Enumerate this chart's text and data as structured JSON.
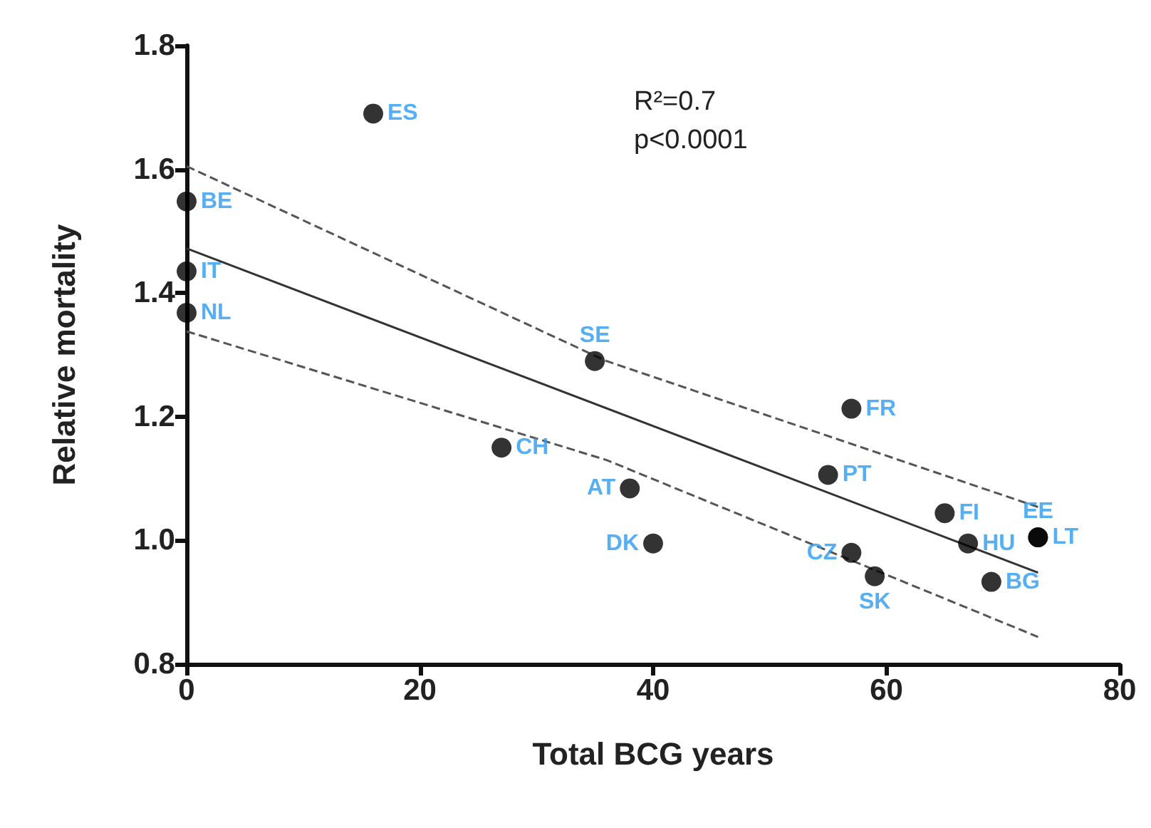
{
  "chart_data": {
    "type": "scatter",
    "xlabel": "Total BCG years",
    "ylabel": "Relative mortality",
    "annotations": [
      "R²=0.7",
      "p<0.0001"
    ],
    "xlim": [
      0,
      80
    ],
    "xticks": [
      0,
      20,
      40,
      60,
      80
    ],
    "ylim": [
      0.8,
      1.8
    ],
    "yticks": [
      0.8,
      {
        "value": 1,
        "label": "1.0"
      },
      1.2,
      1.4,
      1.6,
      1.8
    ],
    "marker": "circle",
    "series": [
      {
        "color": "#000000",
        "x": [
          16,
          0,
          0,
          0,
          35,
          27,
          38,
          40,
          57,
          55,
          57,
          59,
          65,
          67,
          73,
          73,
          69
        ],
        "values": [
          1.69,
          1.548,
          1.435,
          1.368,
          1.29,
          1.15,
          1.084,
          0.995,
          1.213,
          1.106,
          0.98,
          0.942,
          1.044,
          0.995,
          1.005,
          1.005,
          0.933
        ],
        "value_labels": [
          "ES",
          "BE",
          "IT",
          "NL",
          "SE",
          "CH",
          "AT",
          "DK",
          "FR",
          "PT",
          "CZ",
          "SK",
          "FI",
          "HU",
          "EE",
          "LT",
          "BG"
        ]
      },
      {
        "type": "line",
        "marker": "none",
        "color": "#333333",
        "line_style": "solid",
        "x": [
          0,
          73
        ],
        "values": [
          1.472,
          0.948
        ]
      },
      {
        "type": "line",
        "color": "#555555",
        "line_style": "dashed",
        "marker": "none",
        "x": [
          0,
          36,
          73
        ],
        "values": [
          1.605,
          1.29,
          1.054
        ]
      },
      {
        "type": "line",
        "color": "#555555",
        "line_style": "dashed",
        "marker": "none",
        "x": [
          0,
          36,
          73
        ],
        "values": [
          1.338,
          1.13,
          0.844
        ]
      }
    ]
  }
}
